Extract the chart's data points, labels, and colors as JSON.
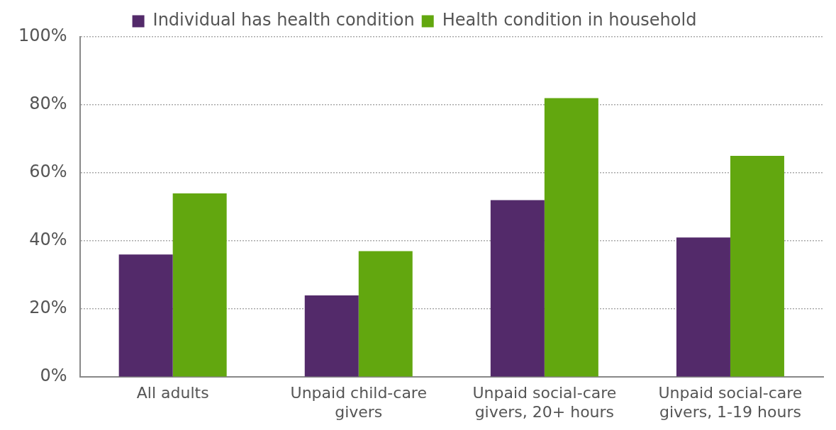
{
  "chart_data": {
    "type": "bar",
    "categories": [
      "All adults",
      "Unpaid child-care givers",
      "Unpaid social-care givers, 20+ hours",
      "Unpaid social-care givers, 1-19 hours"
    ],
    "series": [
      {
        "name": "Individual has health condition",
        "color": "#532a6a",
        "values": [
          36,
          24,
          52,
          41
        ]
      },
      {
        "name": "Health condition in household",
        "color": "#62a70f",
        "values": [
          54,
          37,
          82,
          65
        ]
      }
    ],
    "ylim": [
      0,
      100
    ],
    "yticks": [
      {
        "value": 0,
        "label": "0%"
      },
      {
        "value": 20,
        "label": "20%"
      },
      {
        "value": 40,
        "label": "40%"
      },
      {
        "value": 60,
        "label": "60%"
      },
      {
        "value": 80,
        "label": "80%"
      },
      {
        "value": 100,
        "label": "100%"
      }
    ],
    "grid": "y",
    "legend": "top"
  }
}
